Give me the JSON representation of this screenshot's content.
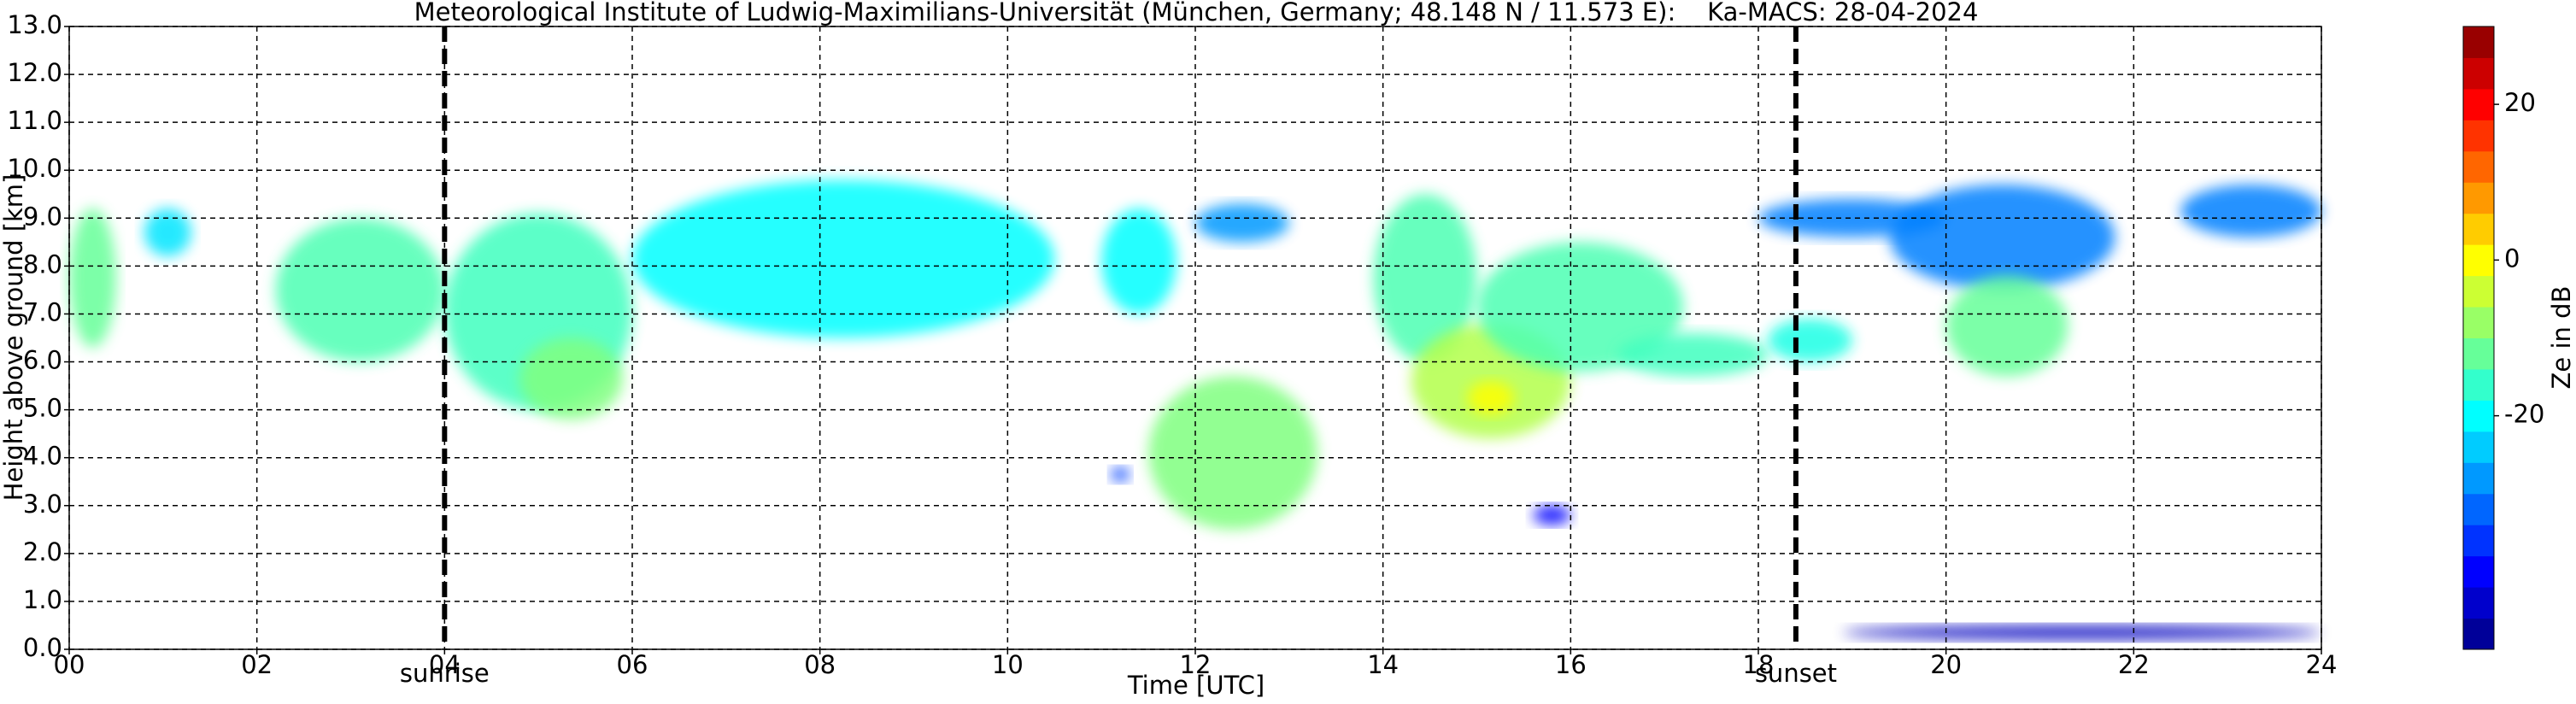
{
  "chart_data": {
    "type": "heatmap",
    "title": "Meteorological Institute of Ludwig-Maximilians-Universität (München, Germany; 48.148 N / 11.573 E):    Ka-MACS: 28-04-2024",
    "x_label": "Time [UTC]",
    "y_label": "Height above ground [km]",
    "xlim": [
      0,
      24
    ],
    "xticks": [
      {
        "value": 0,
        "label": "00"
      },
      {
        "value": 2,
        "label": "02"
      },
      {
        "value": 4,
        "label": "04"
      },
      {
        "value": 6,
        "label": "06"
      },
      {
        "value": 8,
        "label": "08"
      },
      10,
      12,
      14,
      16,
      18,
      20,
      22,
      24
    ],
    "ylim": [
      0,
      13
    ],
    "yticks": [
      {
        "value": 0,
        "label": "0.0"
      },
      {
        "value": 1,
        "label": "1.0"
      },
      {
        "value": 2,
        "label": "2.0"
      },
      {
        "value": 3,
        "label": "3.0"
      },
      {
        "value": 4,
        "label": "4.0"
      },
      {
        "value": 5,
        "label": "5.0"
      },
      {
        "value": 6,
        "label": "6.0"
      },
      {
        "value": 7,
        "label": "7.0"
      },
      {
        "value": 8,
        "label": "8.0"
      },
      {
        "value": 9,
        "label": "9.0"
      },
      {
        "value": 10,
        "label": "10.0"
      },
      {
        "value": 11,
        "label": "11.0"
      },
      {
        "value": 12,
        "label": "12.0"
      },
      {
        "value": 13,
        "label": "13.0"
      }
    ],
    "grid": true,
    "colormap": "jet",
    "colorbar_label": "Ze in dB",
    "clim": [
      -50,
      30
    ],
    "cticks": [
      20,
      0,
      -20
    ],
    "annotations": [
      {
        "x": 4.0,
        "label": "sunrise"
      },
      {
        "x": 18.4,
        "label": "sunset"
      }
    ],
    "echoes": [
      {
        "t": [
          0.0,
          0.5
        ],
        "h": [
          6.3,
          9.2
        ],
        "ze": -12
      },
      {
        "t": [
          0.8,
          1.3
        ],
        "h": [
          8.2,
          9.2
        ],
        "ze": -22
      },
      {
        "t": [
          2.2,
          4.0
        ],
        "h": [
          6.0,
          9.0
        ],
        "ze": -14
      },
      {
        "t": [
          4.0,
          6.0
        ],
        "h": [
          5.0,
          9.1
        ],
        "ze": -15
      },
      {
        "t": [
          4.8,
          5.9
        ],
        "h": [
          4.8,
          6.5
        ],
        "ze": -10
      },
      {
        "t": [
          6.0,
          10.5
        ],
        "h": [
          6.5,
          9.8
        ],
        "ze": -20
      },
      {
        "t": [
          11.0,
          11.8
        ],
        "h": [
          7.0,
          9.2
        ],
        "ze": -20
      },
      {
        "t": [
          11.5,
          13.3
        ],
        "h": [
          2.5,
          5.7
        ],
        "ze": -10
      },
      {
        "t": [
          12.0,
          13.0
        ],
        "h": [
          8.5,
          9.3
        ],
        "ze": -28
      },
      {
        "t": [
          13.9,
          15.0
        ],
        "h": [
          6.0,
          9.5
        ],
        "ze": -14
      },
      {
        "t": [
          14.3,
          16.0
        ],
        "h": [
          4.4,
          6.8
        ],
        "ze": -6
      },
      {
        "t": [
          15.0,
          17.2
        ],
        "h": [
          5.8,
          8.5
        ],
        "ze": -14
      },
      {
        "t": [
          16.5,
          18.1
        ],
        "h": [
          5.7,
          6.6
        ],
        "ze": -15
      },
      {
        "t": [
          18.1,
          19.0
        ],
        "h": [
          6.0,
          6.9
        ],
        "ze": -18
      },
      {
        "t": [
          15.6,
          16.0
        ],
        "h": [
          2.6,
          3.0
        ],
        "ze": -40
      },
      {
        "t": [
          18.0,
          20.0
        ],
        "h": [
          8.6,
          9.4
        ],
        "ze": -30
      },
      {
        "t": [
          19.4,
          21.8
        ],
        "h": [
          7.5,
          9.7
        ],
        "ze": -30
      },
      {
        "t": [
          20.0,
          21.3
        ],
        "h": [
          5.7,
          7.8
        ],
        "ze": -12
      },
      {
        "t": [
          22.5,
          24.0
        ],
        "h": [
          8.6,
          9.7
        ],
        "ze": -30
      },
      {
        "t": [
          18.9,
          24.0
        ],
        "h": [
          0.2,
          0.5
        ],
        "ze": -45
      },
      {
        "t": [
          11.1,
          11.3
        ],
        "h": [
          3.5,
          3.8
        ],
        "ze": -35
      },
      {
        "t": [
          14.9,
          15.4
        ],
        "h": [
          4.9,
          5.6
        ],
        "ze": 0
      }
    ]
  }
}
